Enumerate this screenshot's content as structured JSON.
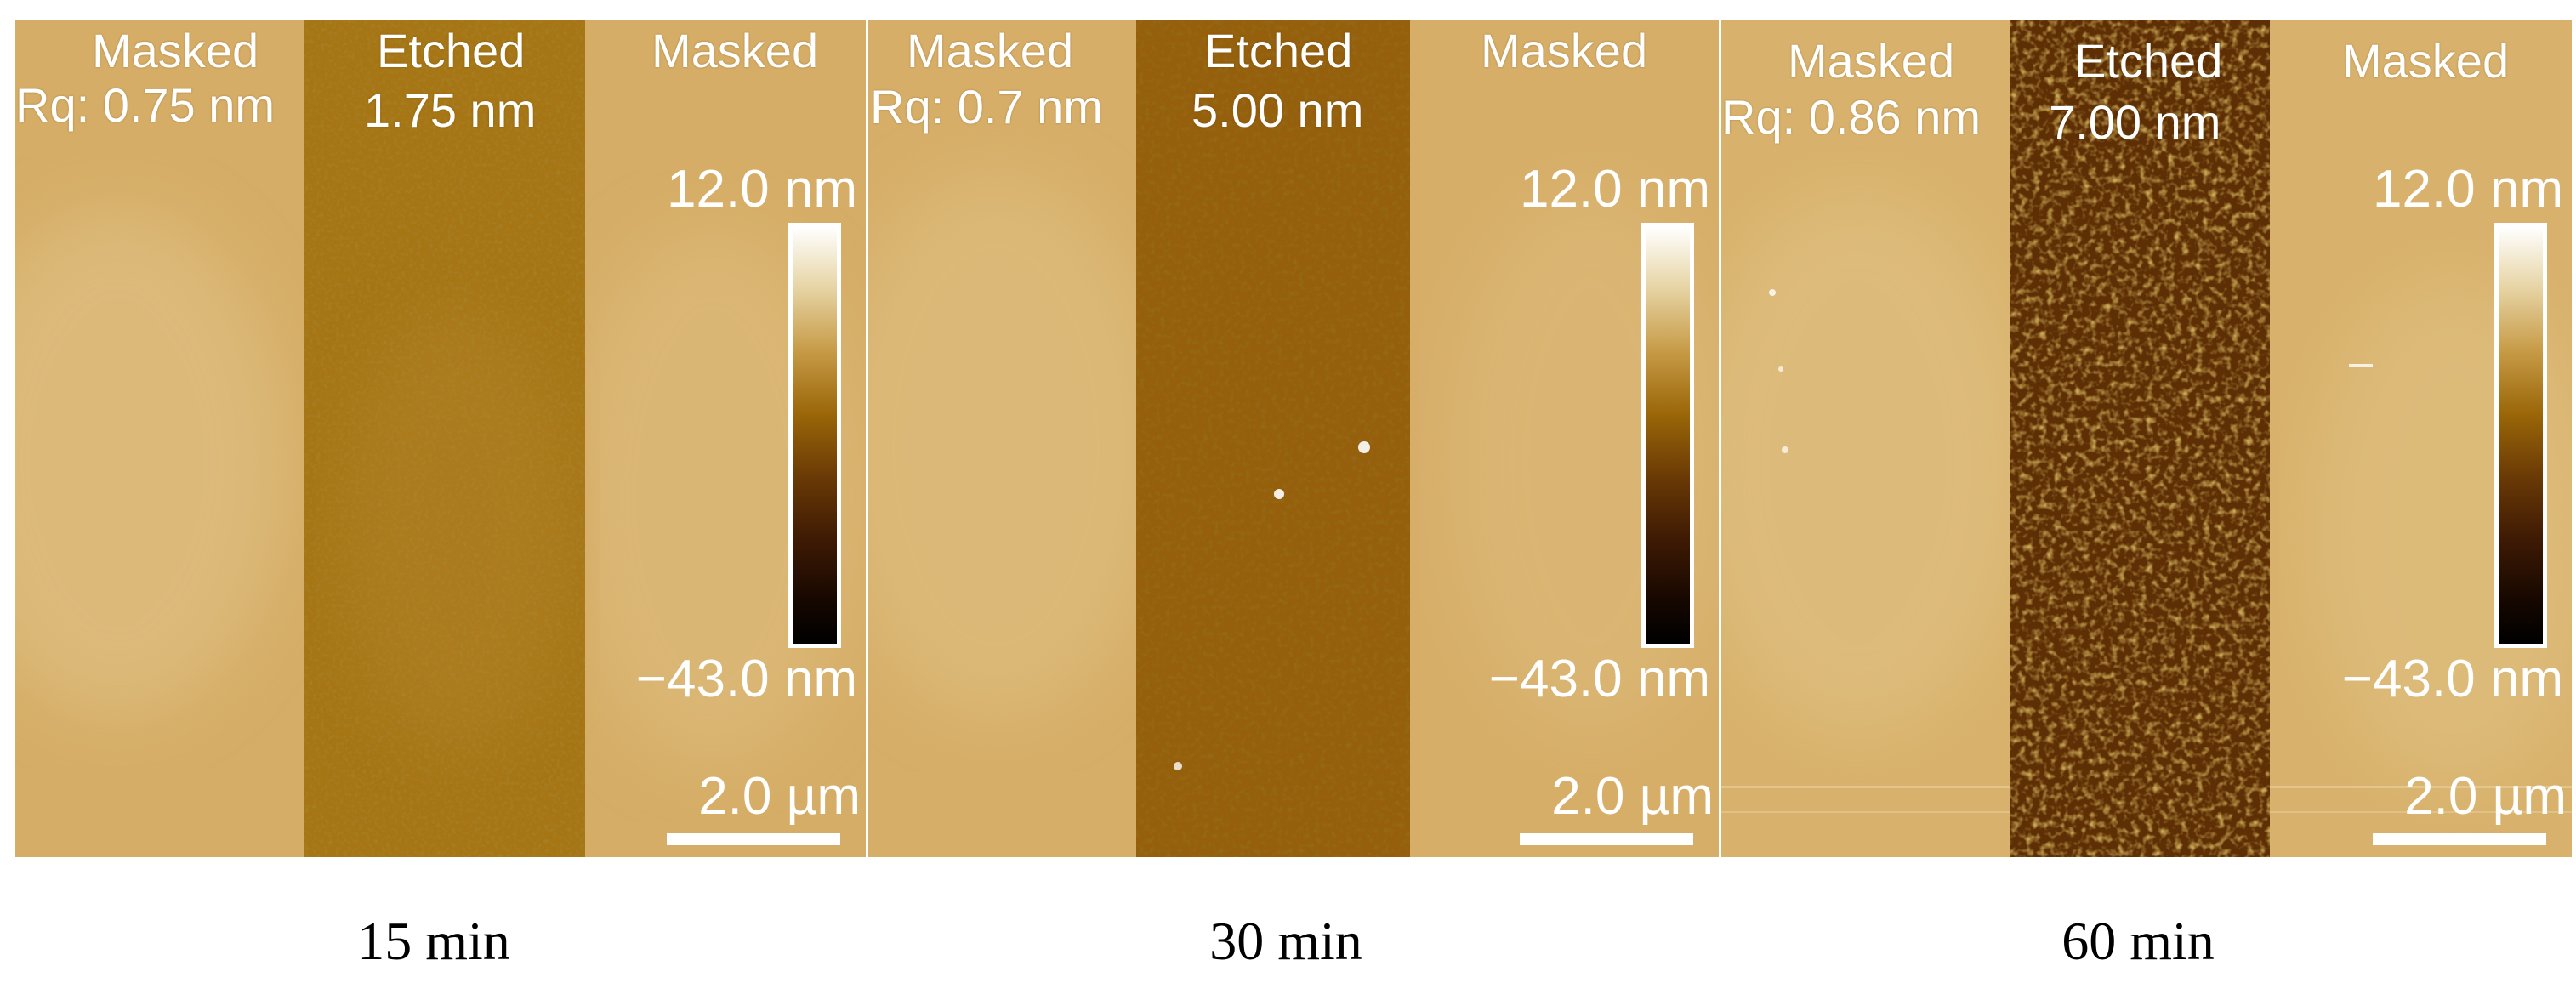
{
  "panels": [
    {
      "left_region": "Masked",
      "left_rq": "Rq: 0.75 nm",
      "middle_region": "Etched",
      "middle_depth": "1.75 nm",
      "right_region": "Masked",
      "colorbar_max": "12.0 nm",
      "colorbar_min": "−43.0 nm",
      "scalebar": "2.0 µm",
      "caption": "15 min"
    },
    {
      "left_region": "Masked",
      "left_rq": "Rq: 0.7 nm",
      "middle_region": "Etched",
      "middle_depth": "5.00 nm",
      "right_region": "Masked",
      "colorbar_max": "12.0 nm",
      "colorbar_min": "−43.0 nm",
      "scalebar": "2.0 µm",
      "caption": "30 min"
    },
    {
      "left_region": "Masked",
      "left_rq": "Rq: 0.86 nm",
      "middle_region": "Etched",
      "middle_depth": "7.00 nm",
      "right_region": "Masked",
      "colorbar_max": "12.0 nm",
      "colorbar_min": "−43.0 nm",
      "scalebar": "2.0 µm",
      "caption": "60 min"
    }
  ],
  "colors": {
    "masked_surface": "#d8b06a",
    "etched_light": "#a4700e",
    "etched_medium": "#8a5406",
    "etched_dark": "#6a3604",
    "label_text": "#ffffff",
    "caption_text": "#000000"
  }
}
